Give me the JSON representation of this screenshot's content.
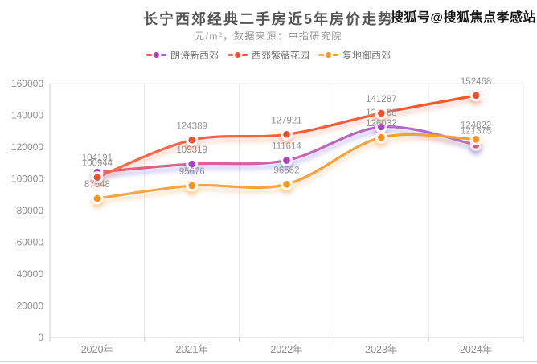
{
  "header": {
    "title": "长宁西郊经典二手房近5年房价走势",
    "subtitle": "元/m²，数据来源：中指研究院",
    "watermark": "搜狐号@搜狐焦点孝感站"
  },
  "chart_data": {
    "type": "line",
    "smooth": true,
    "title": "长宁西郊经典二手房近5年房价走势",
    "subtitle": "元/m²，数据来源：中指研究院",
    "xlabel": "",
    "ylabel": "元/m²",
    "categories": [
      "2020年",
      "2021年",
      "2022年",
      "2023年",
      "2024年"
    ],
    "series": [
      {
        "name": "朗诗新西郊",
        "values": [
          104191,
          109319,
          111614,
          132668,
          121375
        ],
        "color": "#b03fc6",
        "line_stops": [
          [
            "0%",
            "#f2605f"
          ],
          [
            "50%",
            "#c963b2"
          ],
          [
            "100%",
            "#9a6ce0"
          ]
        ],
        "shadow": "rgba(104,86,228,0.45)"
      },
      {
        "name": "西郊紫薇花园",
        "values": [
          100944,
          124389,
          127921,
          141287,
          152468
        ],
        "color": "#f2512e",
        "line_stops": [
          [
            "0%",
            "#fb6a4f"
          ],
          [
            "100%",
            "#fb5226"
          ]
        ],
        "shadow": "rgba(248,88,56,0.35)"
      },
      {
        "name": "复地御西郊",
        "values": [
          87548,
          95676,
          96562,
          126032,
          124822
        ],
        "color": "#f8941d",
        "line_stops": [
          [
            "0%",
            "#fba547"
          ],
          [
            "100%",
            "#f99d2e"
          ]
        ],
        "shadow": "rgba(248,150,50,0.40)"
      }
    ],
    "ylim": [
      0,
      160000
    ],
    "y_ticks": [
      0,
      20000,
      40000,
      60000,
      80000,
      100000,
      120000,
      140000,
      160000
    ],
    "grid": "vertical-splitlines-only",
    "legend_position": "top",
    "data_labels": true
  },
  "ui_colors": {
    "axis_label": "#8f8f8f",
    "data_label": "#949494",
    "grid_line": "#e7e7e7",
    "axis_line": "#cccccc",
    "divider": "#ccd7e3"
  }
}
